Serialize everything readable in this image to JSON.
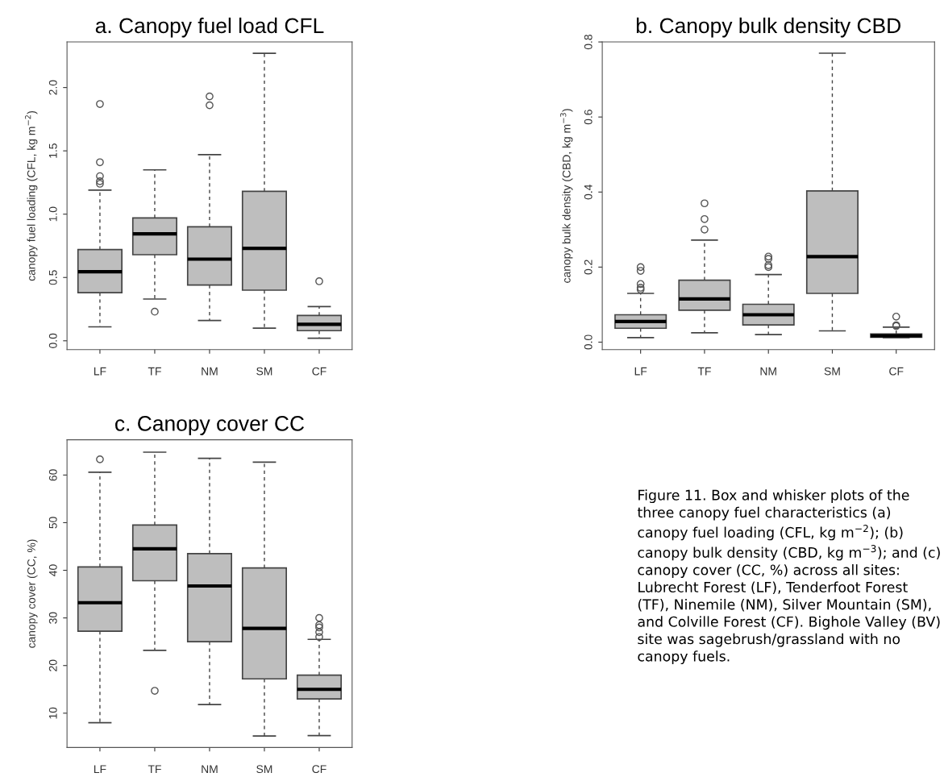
{
  "chart_data": [
    {
      "type": "box",
      "title": "a. Canopy fuel load CFL",
      "ylabel": "canopy fuel loading (CFL, kg m$^{−2}$)",
      "categories": [
        "LF",
        "TF",
        "NM",
        "SM",
        "CF"
      ],
      "ylim": [
        -0.07,
        2.36
      ],
      "yticks": [
        {
          "value": 0,
          "label": "0.0"
        },
        0.5,
        {
          "value": 1,
          "label": "1.0"
        },
        1.5,
        {
          "value": 2,
          "label": "2.0"
        }
      ],
      "series": [
        {
          "color": "#bebebe",
          "boxes": [
            {
              "low": 0.11,
              "q1": 0.38,
              "median": 0.545,
              "q3": 0.72,
              "high": 1.19,
              "outliers": [
                1.24,
                1.26,
                1.3,
                1.41,
                1.87
              ]
            },
            {
              "low": 0.33,
              "q1": 0.68,
              "median": 0.845,
              "q3": 0.97,
              "high": 1.35,
              "outliers": [
                0.23
              ]
            },
            {
              "low": 0.16,
              "q1": 0.44,
              "median": 0.645,
              "q3": 0.9,
              "high": 1.47,
              "outliers": [
                1.86,
                1.93
              ]
            },
            {
              "low": 0.1,
              "q1": 0.4,
              "median": 0.73,
              "q3": 1.18,
              "high": 2.27
            },
            {
              "low": 0.02,
              "q1": 0.08,
              "median": 0.13,
              "q3": 0.2,
              "high": 0.27,
              "outliers": [
                0.47
              ]
            }
          ]
        }
      ]
    },
    {
      "type": "box",
      "title": "b. Canopy bulk density CBD",
      "ylabel": "canopy bulk density (CBD, kg m$^{−3}$)",
      "categories": [
        "LF",
        "TF",
        "NM",
        "SM",
        "CF"
      ],
      "ylim": [
        -0.02,
        0.8
      ],
      "yticks": [
        {
          "value": 0,
          "label": "0.0"
        },
        0.2,
        0.4,
        0.6,
        0.8
      ],
      "series": [
        {
          "color": "#bebebe",
          "boxes": [
            {
              "low": 0.012,
              "q1": 0.037,
              "median": 0.055,
              "q3": 0.073,
              "high": 0.13,
              "outliers": [
                0.14,
                0.145,
                0.155,
                0.19,
                0.2
              ]
            },
            {
              "low": 0.025,
              "q1": 0.085,
              "median": 0.115,
              "q3": 0.165,
              "high": 0.272,
              "outliers": [
                0.3,
                0.328,
                0.37
              ]
            },
            {
              "low": 0.02,
              "q1": 0.046,
              "median": 0.073,
              "q3": 0.101,
              "high": 0.18,
              "outliers": [
                0.2,
                0.205,
                0.222,
                0.228
              ]
            },
            {
              "low": 0.03,
              "q1": 0.13,
              "median": 0.228,
              "q3": 0.403,
              "high": 0.77
            },
            {
              "low": 0.012,
              "q1": 0.013,
              "median": 0.017,
              "q3": 0.022,
              "high": 0.04,
              "outliers": [
                0.043,
                0.045,
                0.068
              ]
            }
          ]
        }
      ]
    },
    {
      "type": "box",
      "title": "c. Canopy cover CC",
      "ylabel": "canopy cover (CC, %)",
      "categories": [
        "LF",
        "TF",
        "NM",
        "SM",
        "CF"
      ],
      "ylim": [
        2.8,
        67.4
      ],
      "yticks": [
        10,
        20,
        30,
        40,
        50,
        60
      ],
      "series": [
        {
          "color": "#bebebe",
          "boxes": [
            {
              "low": 8,
              "q1": 27.2,
              "median": 33.2,
              "q3": 40.7,
              "high": 60.6,
              "outliers": [
                63.3
              ]
            },
            {
              "low": 23.2,
              "q1": 37.8,
              "median": 44.5,
              "q3": 49.5,
              "high": 64.8,
              "outliers": [
                14.7
              ]
            },
            {
              "low": 11.8,
              "q1": 25,
              "median": 36.7,
              "q3": 43.5,
              "high": 63.5
            },
            {
              "low": 5.2,
              "q1": 17.2,
              "median": 27.8,
              "q3": 40.5,
              "high": 62.7
            },
            {
              "low": 5.3,
              "q1": 13,
              "median": 15,
              "q3": 18,
              "high": 25.5,
              "outliers": [
                26,
                27,
                28,
                28.5,
                30
              ]
            }
          ]
        }
      ]
    },
    {
      "type": "other",
      "annotations": [
        "Figure 11. Box and whisker plots of the three canopy fuel characteristics (a) canopy fuel loading (CFL, kg m$^{−2}$); (b) canopy bulk density (CBD, kg m$^{−3}$); and (c) canopy cover (CC, %) across all sites: Lubrecht Forest (LF), Tenderfoot Forest (TF), Ninemile (NM), Silver Mountain (SM), and Colville Forest (CF). Bighole Valley (BV) site was sagebrush/grassland with no canopy fuels."
      ]
    }
  ]
}
